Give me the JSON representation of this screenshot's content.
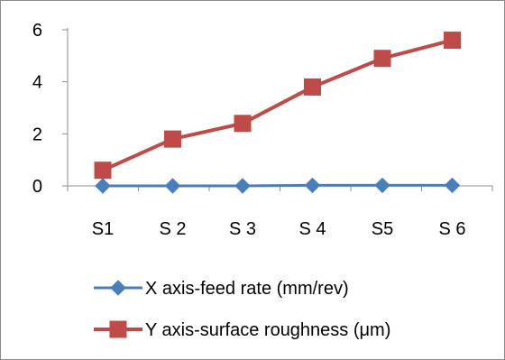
{
  "chart_data": {
    "type": "line",
    "title": "",
    "xlabel": "",
    "ylabel": "",
    "categories": [
      "S1",
      "S 2",
      "S 3",
      "S 4",
      "S5",
      "S 6"
    ],
    "ylim": [
      0,
      6
    ],
    "yticks": [
      0,
      2,
      4,
      6
    ],
    "grid": false,
    "legend_position": "bottom",
    "series": [
      {
        "name": "X axis-feed rate (mm/rev)",
        "values": [
          0,
          0,
          0,
          0.02,
          0.02,
          0.02
        ],
        "color": "#4a7ebb",
        "marker": "diamond"
      },
      {
        "name": "Y axis-surface roughness (μm)",
        "values": [
          0.6,
          1.8,
          2.4,
          3.8,
          4.9,
          5.6
        ],
        "color": "#be4b48",
        "marker": "square"
      }
    ]
  }
}
